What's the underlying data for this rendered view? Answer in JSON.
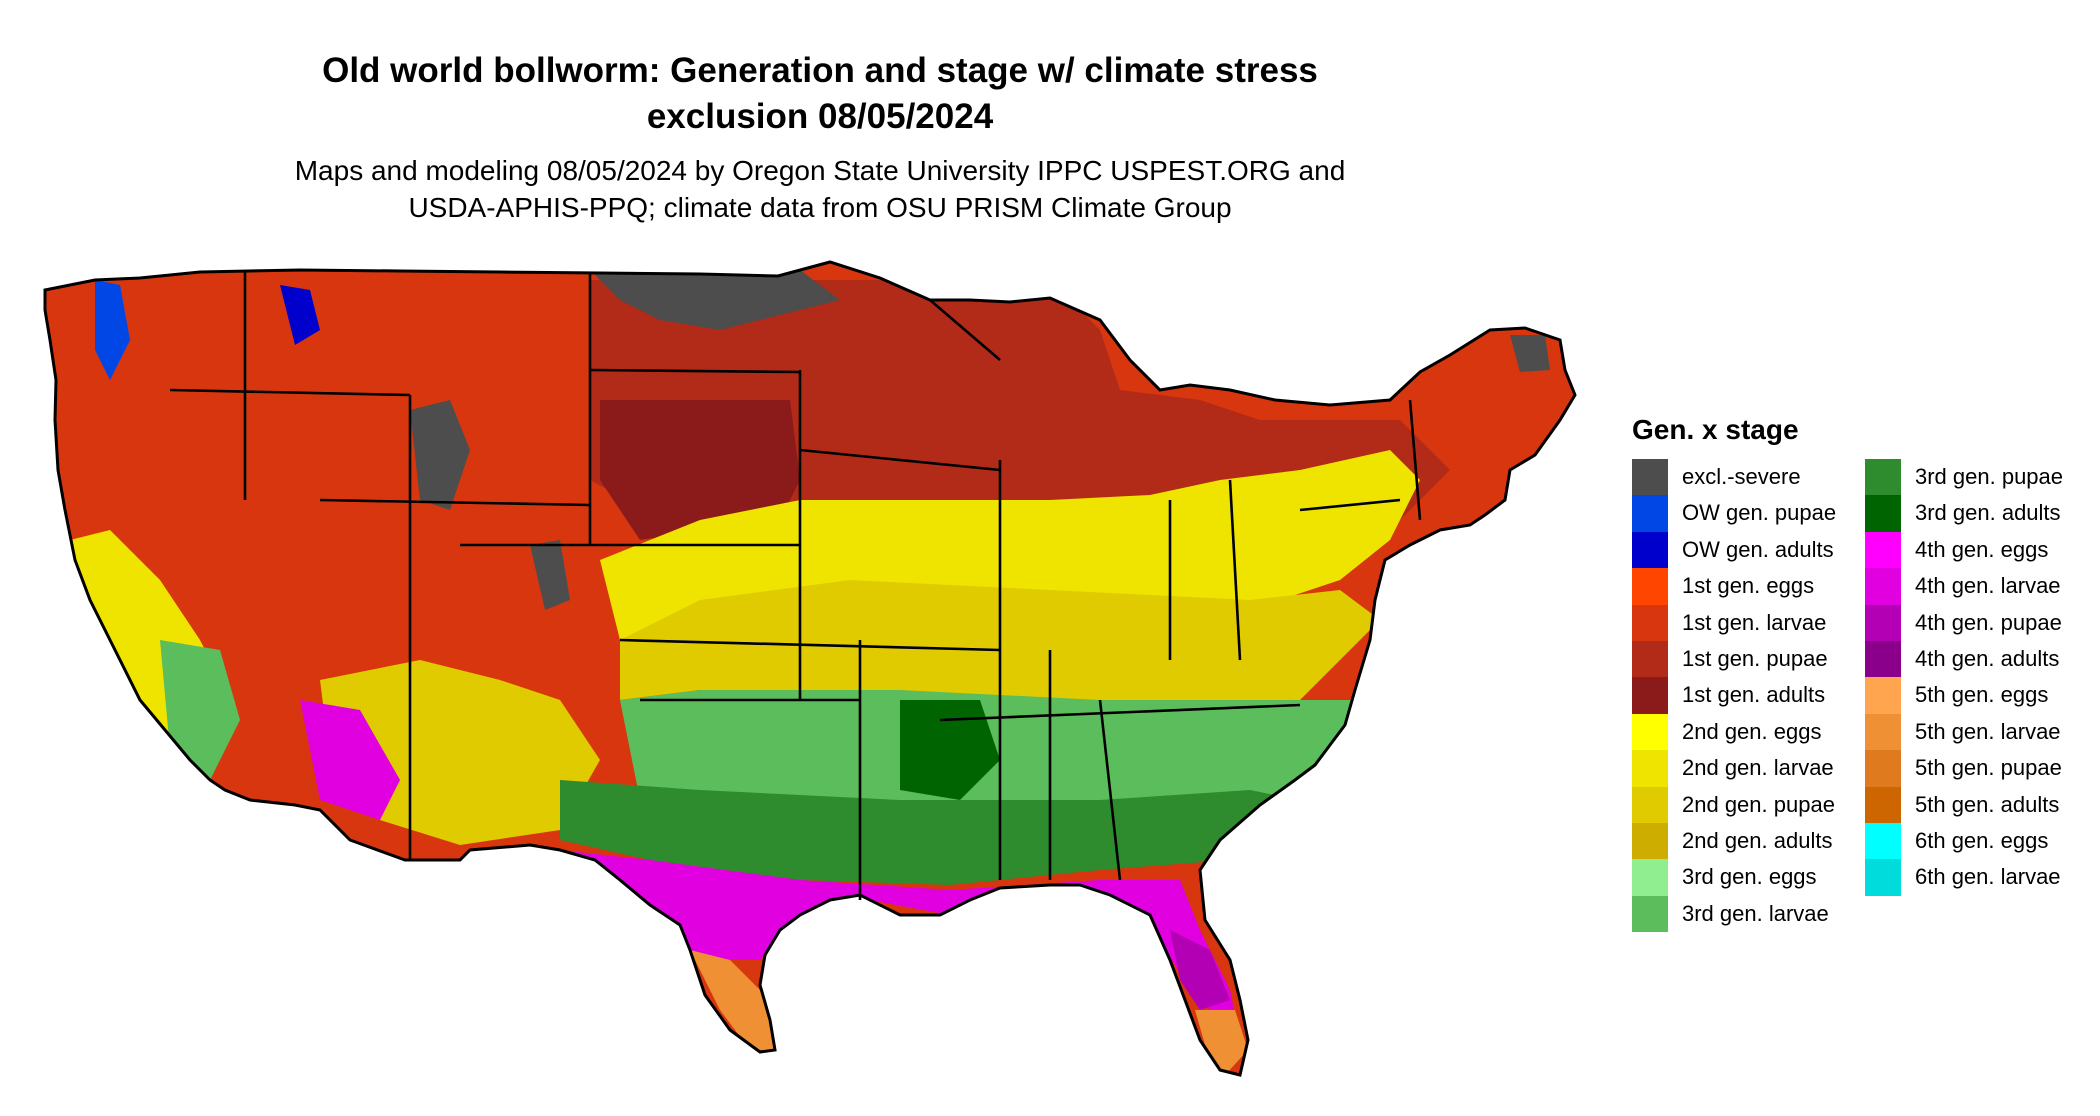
{
  "header": {
    "title_line1": "Old world bollworm: Generation and stage w/ climate stress",
    "title_line2": "exclusion 08/05/2024",
    "subtitle_line1": "Maps and modeling 08/05/2024 by Oregon State University IPPC USPEST.ORG and",
    "subtitle_line2": "USDA-APHIS-PPQ; climate data from OSU PRISM Climate Group"
  },
  "legend": {
    "title": "Gen. x stage",
    "column1": [
      {
        "label": "excl.-severe",
        "color": "#4d4d4d"
      },
      {
        "label": "OW gen. pupae",
        "color": "#0047e6"
      },
      {
        "label": "OW gen. adults",
        "color": "#0000cd"
      },
      {
        "label": "1st gen. eggs",
        "color": "#ff4500"
      },
      {
        "label": "1st gen. larvae",
        "color": "#d8360f"
      },
      {
        "label": "1st gen. pupae",
        "color": "#b22a18"
      },
      {
        "label": "1st gen. adults",
        "color": "#8b1a1a"
      },
      {
        "label": "2nd gen. eggs",
        "color": "#ffff00"
      },
      {
        "label": "2nd gen. larvae",
        "color": "#eee400"
      },
      {
        "label": "2nd gen. pupae",
        "color": "#e0cb00"
      },
      {
        "label": "2nd gen. adults",
        "color": "#cdad00"
      },
      {
        "label": "3rd gen. eggs",
        "color": "#90ee90"
      },
      {
        "label": "3rd gen. larvae",
        "color": "#5cbd5c"
      }
    ],
    "column2": [
      {
        "label": "3rd gen. pupae",
        "color": "#2e8b2e"
      },
      {
        "label": "3rd gen. adults",
        "color": "#006400"
      },
      {
        "label": "4th gen. eggs",
        "color": "#ff00ff"
      },
      {
        "label": "4th gen. larvae",
        "color": "#e000e0"
      },
      {
        "label": "4th gen. pupae",
        "color": "#b400b4"
      },
      {
        "label": "4th gen. adults",
        "color": "#8b008b"
      },
      {
        "label": "5th gen. eggs",
        "color": "#ffa54f"
      },
      {
        "label": "5th gen. larvae",
        "color": "#ee9033"
      },
      {
        "label": "5th gen. pupae",
        "color": "#e07a1f"
      },
      {
        "label": "5th gen. adults",
        "color": "#cd6600"
      },
      {
        "label": "6th gen. eggs",
        "color": "#00ffff"
      },
      {
        "label": "6th gen. larvae",
        "color": "#00dcdc"
      }
    ]
  },
  "map": {
    "region": "contiguous United States",
    "zones_north_to_south": [
      "1st gen. larvae",
      "1st gen. pupae",
      "1st gen. adults",
      "2nd gen. larvae",
      "2nd gen. pupae",
      "3rd gen. larvae",
      "3rd gen. pupae",
      "4th gen. larvae",
      "5th gen. larvae"
    ]
  }
}
